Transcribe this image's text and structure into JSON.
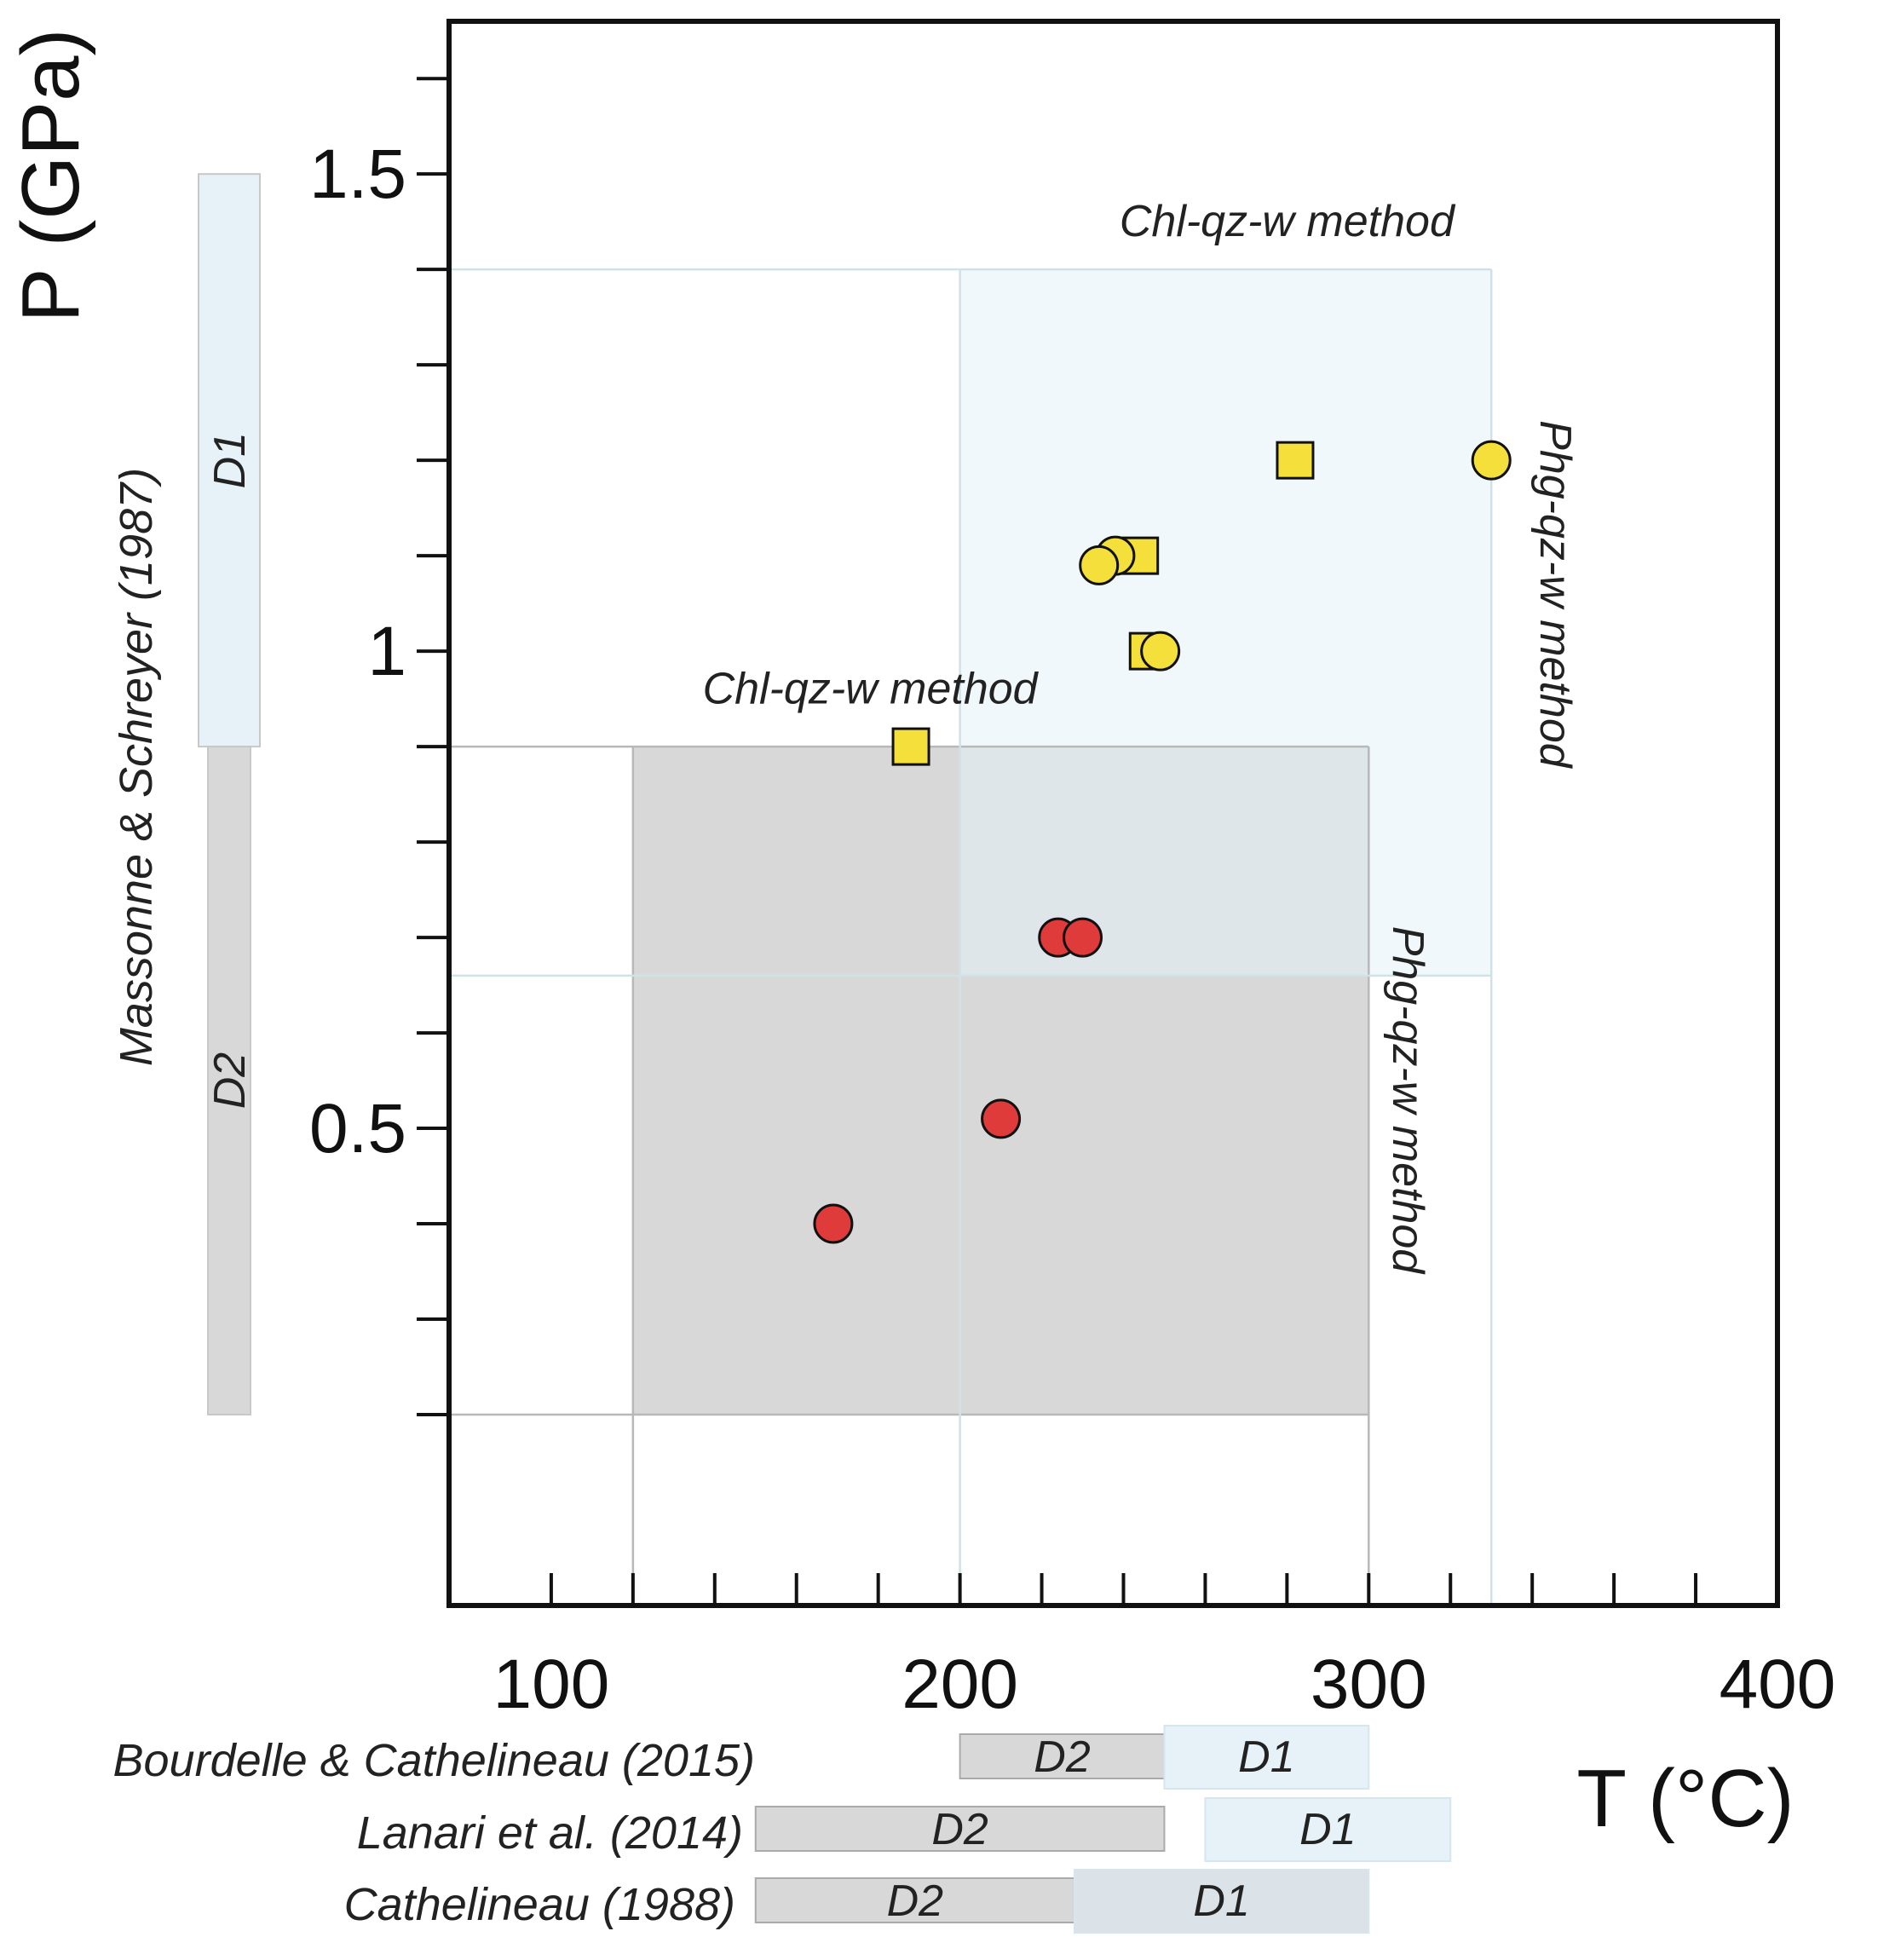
{
  "chart_data": {
    "type": "scatter",
    "title": "",
    "xlabel": "T (°C)",
    "ylabel": "P (GPa)",
    "xlim": [
      75,
      400
    ],
    "ylim": [
      0.0,
      1.66
    ],
    "x_ticks": [
      100,
      200,
      300,
      400
    ],
    "y_ticks": [
      0.5,
      1,
      1.5
    ],
    "x_tick_labels": [
      "100",
      "200",
      "300",
      "400"
    ],
    "y_tick_labels": [
      "0.5",
      "1",
      "1.5"
    ],
    "grid": false,
    "regions": [
      {
        "name": "D2",
        "x": [
          120,
          300
        ],
        "y": [
          0.2,
          0.9
        ],
        "color": "#d8d8d8",
        "label": "",
        "label_orientation": "none"
      },
      {
        "name": "D1",
        "x": [
          200,
          330
        ],
        "y": [
          0.66,
          1.4
        ],
        "color": "#e6f2f7",
        "label": "",
        "label_orientation": "none"
      }
    ],
    "region_labels": [
      {
        "text": "Chl-qz-w method",
        "x": 280,
        "y": 1.435,
        "orientation": "horizontal"
      },
      {
        "text": "Chl-qz-w method",
        "x": 178,
        "y": 0.945,
        "orientation": "horizontal"
      },
      {
        "text": "Phg-qz-w method",
        "x": 342,
        "y": 1.06,
        "orientation": "rotated-cw"
      },
      {
        "text": "Phg-qz-w method",
        "x": 306,
        "y": 0.53,
        "orientation": "rotated-cw"
      }
    ],
    "series": [
      {
        "marker": "square",
        "color": "#f5e03b",
        "points": [
          [
            188,
            0.9
          ],
          [
            244,
            1.1
          ],
          [
            246,
            1.0
          ],
          [
            282,
            1.2
          ]
        ]
      },
      {
        "marker": "circle",
        "color": "#f5e03b",
        "points": [
          [
            238,
            1.1
          ],
          [
            234,
            1.09
          ],
          [
            249,
            1.0
          ],
          [
            330,
            1.2
          ]
        ]
      },
      {
        "marker": "circle",
        "color": "#e03b3b",
        "points": [
          [
            224,
            0.7
          ],
          [
            230,
            0.7
          ],
          [
            210,
            0.51
          ],
          [
            169,
            0.4
          ]
        ]
      }
    ],
    "pressure_ranges": {
      "source": "Massonne & Schreyer (1987)",
      "bars": [
        {
          "label": "D1",
          "y": [
            0.9,
            1.5
          ],
          "color": "#e6f2f7"
        },
        {
          "label": "D2",
          "y": [
            0.2,
            0.9
          ],
          "color": "#d8d8d8"
        }
      ]
    },
    "temperature_ranges": [
      {
        "source": "Bourdelle & Cathelineau (2015)",
        "bars": [
          {
            "label": "D2",
            "x": [
              200,
              250
            ],
            "color": "#d8d8d8"
          },
          {
            "label": "D1",
            "x": [
              250,
              300
            ],
            "color": "#e6f2f7"
          }
        ]
      },
      {
        "source": "Lanari et al. (2014)",
        "bars": [
          {
            "label": "D2",
            "x": [
              150,
              250
            ],
            "color": "#d8d8d8"
          },
          {
            "label": "D1",
            "x": [
              260,
              320
            ],
            "color": "#e6f2f7"
          }
        ]
      },
      {
        "source": "Cathelineau (1988)",
        "bars": [
          {
            "label": "D2",
            "x": [
              150,
              228
            ],
            "color": "#d8d8d8"
          },
          {
            "label": "D1",
            "x": [
              228,
              300
            ],
            "color": "#dbe3e8"
          }
        ]
      }
    ]
  }
}
